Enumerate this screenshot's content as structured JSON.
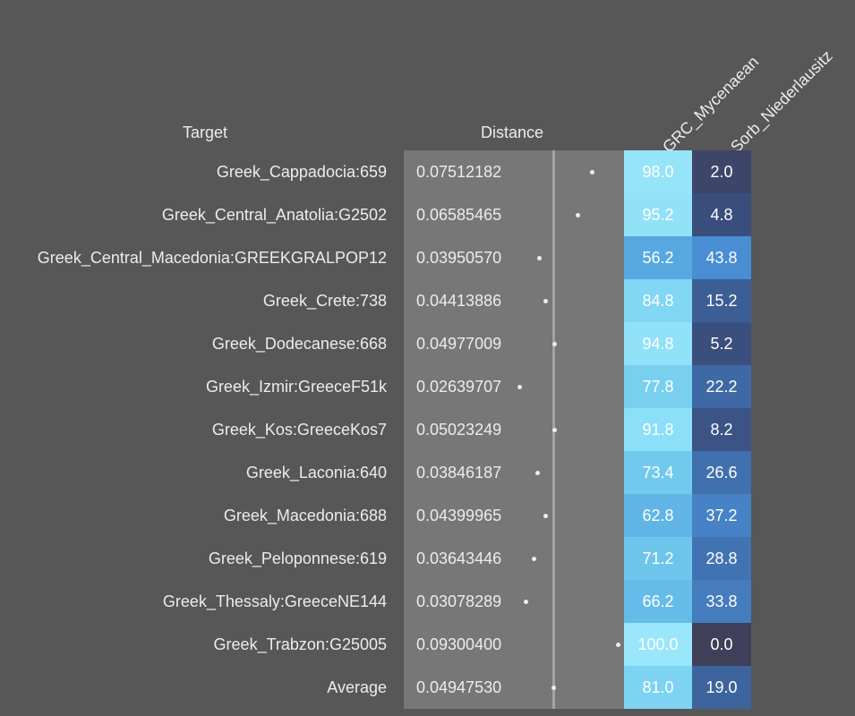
{
  "headers": {
    "target": "Target",
    "distance": "Distance",
    "columns": [
      "GRC_Mycenaean",
      "Sorb_Niederlausitz"
    ]
  },
  "chart_data": {
    "type": "table",
    "columns": [
      "Target",
      "Distance",
      "GRC_Mycenaean",
      "Sorb_Niederlausitz"
    ],
    "rows": [
      {
        "target": "Greek_Cappadocia:659",
        "distance": "0.07512182",
        "values": [
          "98.0",
          "2.0"
        ]
      },
      {
        "target": "Greek_Central_Anatolia:G2502",
        "distance": "0.06585465",
        "values": [
          "95.2",
          "4.8"
        ]
      },
      {
        "target": "Greek_Central_Macedonia:GREEKGRALPOP12",
        "distance": "0.03950570",
        "values": [
          "56.2",
          "43.8"
        ]
      },
      {
        "target": "Greek_Crete:738",
        "distance": "0.04413886",
        "values": [
          "84.8",
          "15.2"
        ]
      },
      {
        "target": "Greek_Dodecanese:668",
        "distance": "0.04977009",
        "values": [
          "94.8",
          "5.2"
        ]
      },
      {
        "target": "Greek_Izmir:GreeceF51k",
        "distance": "0.02639707",
        "values": [
          "77.8",
          "22.2"
        ]
      },
      {
        "target": "Greek_Kos:GreeceKos7",
        "distance": "0.05023249",
        "values": [
          "91.8",
          "8.2"
        ]
      },
      {
        "target": "Greek_Laconia:640",
        "distance": "0.03846187",
        "values": [
          "73.4",
          "26.6"
        ]
      },
      {
        "target": "Greek_Macedonia:688",
        "distance": "0.04399965",
        "values": [
          "62.8",
          "37.2"
        ]
      },
      {
        "target": "Greek_Peloponnese:619",
        "distance": "0.03643446",
        "values": [
          "71.2",
          "28.8"
        ]
      },
      {
        "target": "Greek_Thessaly:GreeceNE144",
        "distance": "0.03078289",
        "values": [
          "66.2",
          "33.8"
        ]
      },
      {
        "target": "Greek_Trabzon:G25005",
        "distance": "0.09300400",
        "values": [
          "100.0",
          "0.0"
        ]
      },
      {
        "target": "Average",
        "distance": "0.04947530",
        "values": [
          "81.0",
          "19.0"
        ]
      }
    ],
    "colors": {
      "background": "#575757",
      "distance_panel": "#777777",
      "average_line": "#a3a3a3",
      "text": "#ececec",
      "scale_low": "#3f3f59",
      "scale_high": "#9ae6fa"
    }
  }
}
